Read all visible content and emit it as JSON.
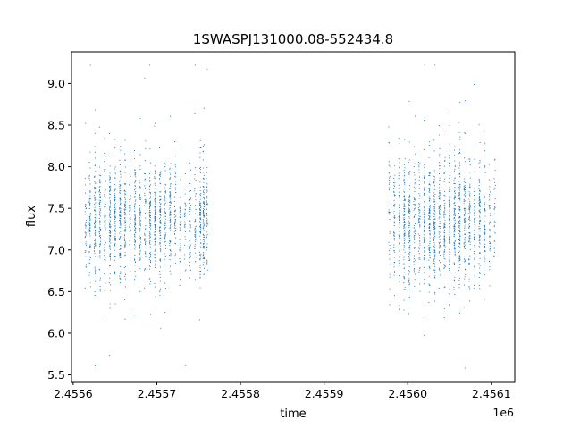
{
  "chart_data": {
    "type": "scatter",
    "title": "1SWASPJ131000.08-552434.8",
    "xlabel": "time",
    "ylabel": "flux",
    "x_offset_text": "1e6",
    "xlim": [
      2455598,
      2456128
    ],
    "ylim": [
      5.42,
      9.38
    ],
    "x_ticks": [
      2455600,
      2455700,
      2455800,
      2455900,
      2456000,
      2456100
    ],
    "x_tick_labels": [
      "2.4556",
      "2.4557",
      "2.4558",
      "2.4559",
      "2.4560",
      "2.4561"
    ],
    "y_ticks": [
      5.5,
      6.0,
      6.5,
      7.0,
      7.5,
      8.0,
      8.5,
      9.0
    ],
    "y_tick_labels": [
      "5.5",
      "6.0",
      "6.5",
      "7.0",
      "7.5",
      "8.0",
      "8.5",
      "9.0"
    ],
    "grid": false,
    "marker_color": "#1f77b4",
    "series": [
      {
        "segments": [
          {
            "x_range": [
              2455613,
              2455763
            ],
            "flux_center": 7.35,
            "flux_spread": 0.35,
            "flux_min": 5.62,
            "flux_max": 9.22
          },
          {
            "x_range": [
              2455976,
              2456106
            ],
            "flux_center": 7.35,
            "flux_spread": 0.38,
            "flux_min": 5.58,
            "flux_max": 9.22
          }
        ],
        "nights": [
          {
            "t": 2455615,
            "n": 40
          },
          {
            "t": 2455620,
            "n": 70
          },
          {
            "t": 2455626,
            "n": 90
          },
          {
            "t": 2455632,
            "n": 80
          },
          {
            "t": 2455638,
            "n": 60
          },
          {
            "t": 2455644,
            "n": 110
          },
          {
            "t": 2455650,
            "n": 90
          },
          {
            "t": 2455656,
            "n": 100
          },
          {
            "t": 2455662,
            "n": 80
          },
          {
            "t": 2455668,
            "n": 60
          },
          {
            "t": 2455674,
            "n": 90
          },
          {
            "t": 2455680,
            "n": 70
          },
          {
            "t": 2455686,
            "n": 50
          },
          {
            "t": 2455692,
            "n": 90
          },
          {
            "t": 2455698,
            "n": 110
          },
          {
            "t": 2455704,
            "n": 100
          },
          {
            "t": 2455710,
            "n": 60
          },
          {
            "t": 2455716,
            "n": 80
          },
          {
            "t": 2455722,
            "n": 50
          },
          {
            "t": 2455728,
            "n": 40
          },
          {
            "t": 2455734,
            "n": 30
          },
          {
            "t": 2455740,
            "n": 40
          },
          {
            "t": 2455746,
            "n": 50
          },
          {
            "t": 2455752,
            "n": 90
          },
          {
            "t": 2455756,
            "n": 110
          },
          {
            "t": 2455760,
            "n": 60
          },
          {
            "t": 2455978,
            "n": 40
          },
          {
            "t": 2455984,
            "n": 60
          },
          {
            "t": 2455990,
            "n": 80
          },
          {
            "t": 2455996,
            "n": 110
          },
          {
            "t": 2456002,
            "n": 100
          },
          {
            "t": 2456008,
            "n": 70
          },
          {
            "t": 2456014,
            "n": 60
          },
          {
            "t": 2456020,
            "n": 90
          },
          {
            "t": 2456026,
            "n": 110
          },
          {
            "t": 2456032,
            "n": 100
          },
          {
            "t": 2456038,
            "n": 80
          },
          {
            "t": 2456044,
            "n": 90
          },
          {
            "t": 2456050,
            "n": 110
          },
          {
            "t": 2456056,
            "n": 100
          },
          {
            "t": 2456062,
            "n": 110
          },
          {
            "t": 2456068,
            "n": 90
          },
          {
            "t": 2456074,
            "n": 80
          },
          {
            "t": 2456080,
            "n": 70
          },
          {
            "t": 2456086,
            "n": 90
          },
          {
            "t": 2456092,
            "n": 60
          },
          {
            "t": 2456098,
            "n": 40
          },
          {
            "t": 2456104,
            "n": 30
          }
        ]
      }
    ]
  }
}
